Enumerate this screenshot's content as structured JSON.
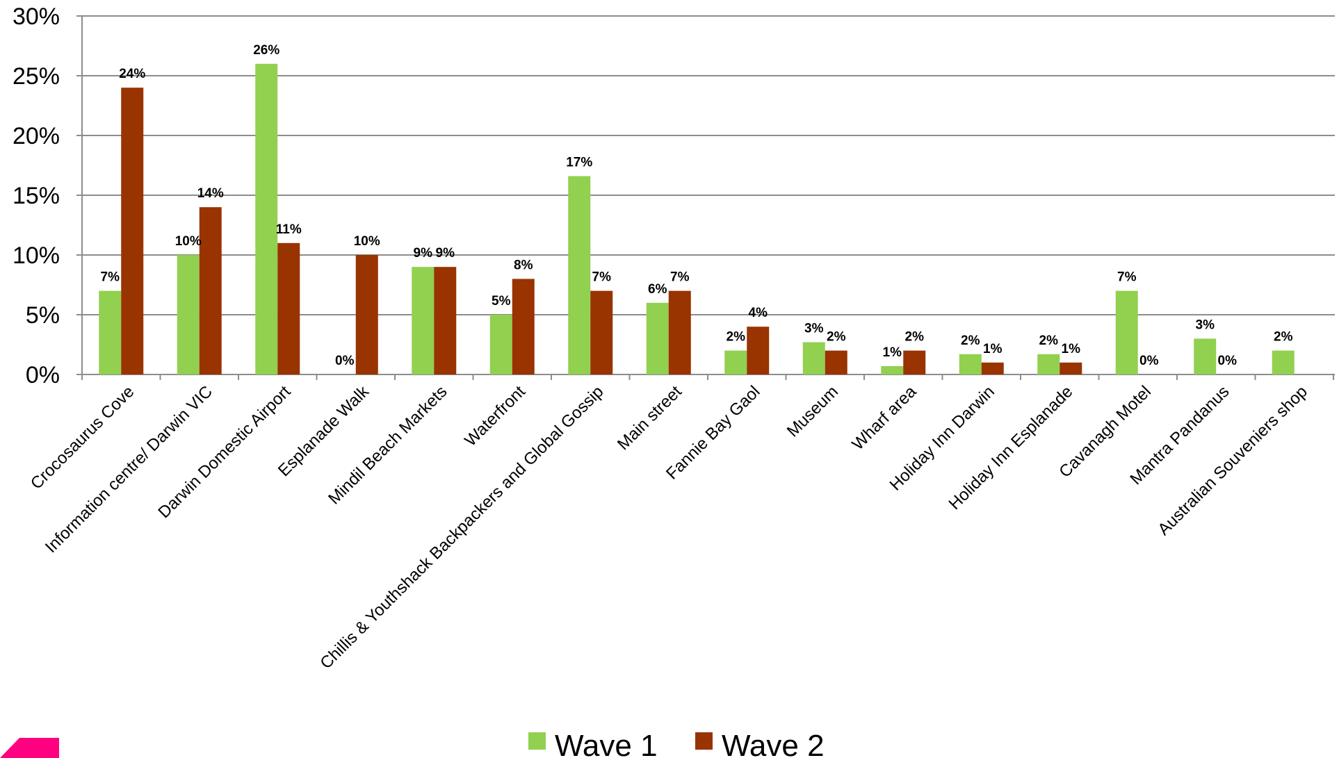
{
  "chart_data": {
    "type": "bar",
    "categories": [
      "Crocosaurus Cove",
      "Information centre/ Darwin VIC",
      "Darwin Domestic Airport",
      "Esplanade Walk",
      "Mindil Beach Markets",
      "Waterfront",
      "Chillis & Youthshack Backpackers and Global Gossip",
      "Main street",
      "Fannie Bay Gaol",
      "Museum",
      "Wharf area",
      "Holiday Inn Darwin",
      "Holiday Inn Esplanade",
      "Cavanagh Motel",
      "Mantra Pandanus",
      "Australian Souveniers shop"
    ],
    "series": [
      {
        "name": "Wave 1",
        "color": "#92d050",
        "values": [
          7,
          10,
          26,
          0,
          9,
          5,
          16.6,
          6,
          2,
          2.7,
          0.7,
          1.7,
          1.7,
          7,
          3,
          2
        ],
        "labels": [
          "7%",
          "10%",
          "26%",
          "",
          "9%",
          "5%",
          "17%",
          "6%",
          "2%",
          "3%",
          "1%",
          "2%",
          "2%",
          "7%",
          "3%",
          "2%"
        ]
      },
      {
        "name": "Wave 2",
        "color": "#993300",
        "values": [
          24,
          14,
          11,
          10,
          9,
          8,
          7,
          7,
          4,
          2,
          2,
          1,
          1,
          0,
          0,
          null
        ],
        "labels": [
          "24%",
          "14%",
          "11%",
          "10%",
          "9%",
          "8%",
          "7%",
          "7%",
          "4%",
          "2%",
          "2%",
          "1%",
          "1%",
          "0%",
          "0%",
          ""
        ]
      }
    ],
    "extra_labels": [
      {
        "category_index": 3,
        "text": "0%"
      }
    ],
    "ylim": [
      0,
      30
    ],
    "yticks": [
      "0%",
      "5%",
      "10%",
      "15%",
      "20%",
      "25%",
      "30%"
    ],
    "grid": true,
    "legend_position": "bottom",
    "title": "",
    "xlabel": "",
    "ylabel": ""
  },
  "logo": {
    "color": "#ff0080"
  }
}
